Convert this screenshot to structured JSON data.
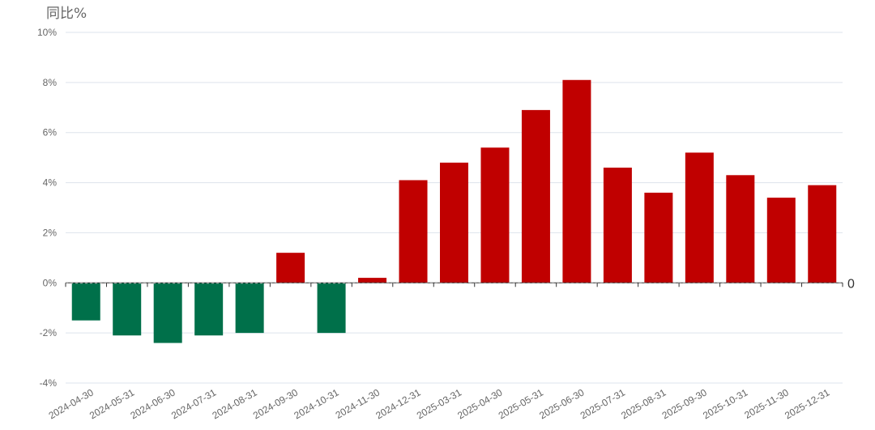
{
  "chart_data": {
    "type": "bar",
    "ylabel": "同比%",
    "categories": [
      "2024-04-30",
      "2024-05-31",
      "2024-06-30",
      "2024-07-31",
      "2024-08-31",
      "2024-09-30",
      "2024-10-31",
      "2024-11-30",
      "2024-12-31",
      "2025-03-31",
      "2025-04-30",
      "2025-05-31",
      "2025-06-30",
      "2025-07-31",
      "2025-08-31",
      "2025-09-30",
      "2025-10-31",
      "2025-11-30",
      "2025-12-31"
    ],
    "values": [
      -1.5,
      -2.1,
      -2.4,
      -2.1,
      -2.0,
      1.2,
      -2.0,
      0.2,
      4.1,
      4.8,
      5.4,
      6.9,
      8.1,
      4.6,
      3.6,
      5.2,
      4.3,
      3.4,
      3.9
    ],
    "ylim": [
      -4,
      10
    ],
    "yticks": [
      -4,
      -2,
      0,
      2,
      4,
      6,
      8,
      10
    ],
    "ytick_labels": [
      "-4%",
      "-2%",
      "0%",
      "2%",
      "4%",
      "6%",
      "8%",
      "10%"
    ],
    "right_axis_label": "0",
    "grid": true,
    "colors": {
      "positive": "#c00000",
      "negative": "#00704a",
      "grid": "#dde3ec",
      "axis": "#333333",
      "text": "#666666"
    }
  }
}
